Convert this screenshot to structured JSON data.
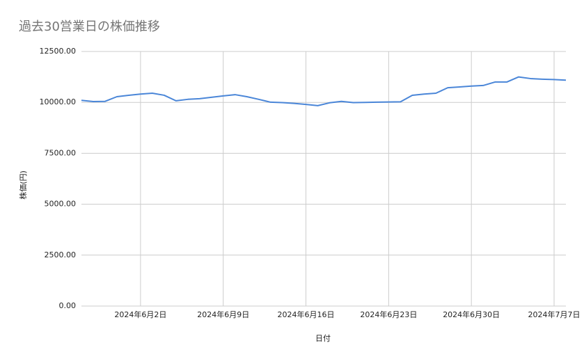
{
  "chart_data": {
    "type": "line",
    "title": "過去30営業日の株価推移",
    "x_label": "日付",
    "y_label": "株価(円)",
    "x": [
      "2024-05-28",
      "2024-05-29",
      "2024-05-30",
      "2024-05-31",
      "2024-06-01",
      "2024-06-02",
      "2024-06-03",
      "2024-06-04",
      "2024-06-05",
      "2024-06-06",
      "2024-06-07",
      "2024-06-08",
      "2024-06-09",
      "2024-06-10",
      "2024-06-11",
      "2024-06-12",
      "2024-06-13",
      "2024-06-14",
      "2024-06-15",
      "2024-06-16",
      "2024-06-17",
      "2024-06-18",
      "2024-06-19",
      "2024-06-20",
      "2024-06-21",
      "2024-06-22",
      "2024-06-23",
      "2024-06-24",
      "2024-06-25",
      "2024-06-26",
      "2024-06-27",
      "2024-06-28",
      "2024-06-29",
      "2024-06-30",
      "2024-07-01",
      "2024-07-02",
      "2024-07-03",
      "2024-07-04",
      "2024-07-05",
      "2024-07-06",
      "2024-07-07",
      "2024-07-08"
    ],
    "values": [
      10100,
      10040,
      10050,
      10280,
      10350,
      10410,
      10450,
      10350,
      10080,
      10150,
      10180,
      10250,
      10320,
      10380,
      10280,
      10150,
      10010,
      9990,
      9950,
      9900,
      9840,
      9980,
      10050,
      9990,
      10000,
      10010,
      10020,
      10030,
      10350,
      10410,
      10450,
      10720,
      10760,
      10800,
      10830,
      11000,
      11000,
      11250,
      11170,
      11140,
      11120,
      11090
    ],
    "color": "#4a86d8",
    "xlim": [
      "2024-05-28",
      "2024-07-08"
    ],
    "xticks": [
      {
        "value": "2024-06-02",
        "label": "2024年6月2日"
      },
      {
        "value": "2024-06-09",
        "label": "2024年6月9日"
      },
      {
        "value": "2024-06-16",
        "label": "2024年6月16日"
      },
      {
        "value": "2024-06-23",
        "label": "2024年6月23日"
      },
      {
        "value": "2024-06-30",
        "label": "2024年6月30日"
      },
      {
        "value": "2024-07-07",
        "label": "2024年7月7日"
      }
    ],
    "ylim": [
      0,
      12500
    ],
    "yticks": [
      {
        "value": 0,
        "label": "0.00"
      },
      {
        "value": 2500,
        "label": "2500.00"
      },
      {
        "value": 5000,
        "label": "5000.00"
      },
      {
        "value": 7500,
        "label": "7500.00"
      },
      {
        "value": 10000,
        "label": "10000.00"
      },
      {
        "value": 12500,
        "label": "12500.00"
      }
    ],
    "grid": true
  }
}
